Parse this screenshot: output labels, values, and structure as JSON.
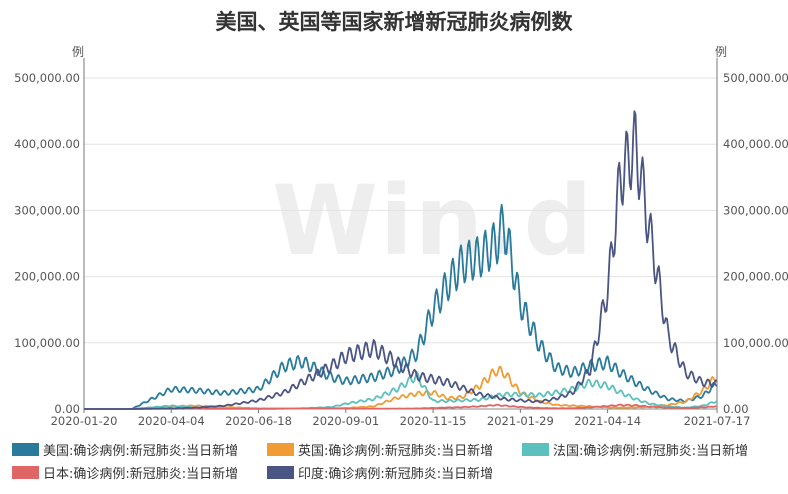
{
  "title": "美国、英国等国家新增新冠肺炎病例数",
  "watermark": "Win.d",
  "chart_data": {
    "type": "line",
    "title": "美国、英国等国家新增新冠肺炎病例数",
    "ylabel_left": "例",
    "ylabel_right": "例",
    "ylim": [
      0,
      500000
    ],
    "y_ticks": [
      "0.00",
      "100,000.00",
      "200,000.00",
      "300,000.00",
      "400,000.00",
      "500,000.00"
    ],
    "x_ticks": [
      "2020-01-20",
      "2020-04-04",
      "2020-06-18",
      "2020-09-01",
      "2020-11-15",
      "2021-01-29",
      "2021-04-14",
      "2021-07-17"
    ],
    "x_dates": [
      "2020-01-20",
      "2020-03-01",
      "2020-04-04",
      "2020-04-25",
      "2020-05-20",
      "2020-06-18",
      "2020-07-10",
      "2020-07-25",
      "2020-08-20",
      "2020-09-01",
      "2020-09-25",
      "2020-10-15",
      "2020-11-01",
      "2020-11-15",
      "2020-11-28",
      "2020-12-10",
      "2020-12-25",
      "2021-01-08",
      "2021-01-15",
      "2021-01-29",
      "2021-02-15",
      "2021-03-01",
      "2021-03-15",
      "2021-03-30",
      "2021-04-14",
      "2021-04-25",
      "2021-05-08",
      "2021-05-20",
      "2021-06-05",
      "2021-06-20",
      "2021-07-05",
      "2021-07-17"
    ],
    "series": [
      {
        "name": "美国:确诊病例:新冠肺炎:当日新增",
        "color": "#2a7a9c",
        "values": [
          0,
          0,
          30000,
          28000,
          24000,
          30000,
          65000,
          72000,
          48000,
          42000,
          48000,
          60000,
          85000,
          150000,
          190000,
          220000,
          230000,
          250000,
          280000,
          160000,
          95000,
          62000,
          55000,
          65000,
          70000,
          55000,
          40000,
          28000,
          15000,
          12000,
          20000,
          40000
        ]
      },
      {
        "name": "英国:确诊病例:新冠肺炎:当日新增",
        "color": "#f09b33",
        "values": [
          0,
          0,
          4000,
          5000,
          3000,
          1000,
          700,
          800,
          1000,
          1500,
          4000,
          17000,
          23000,
          25000,
          16000,
          18000,
          35000,
          58000,
          55000,
          25000,
          11000,
          6000,
          5000,
          4000,
          2500,
          2000,
          2500,
          3000,
          6000,
          11000,
          28000,
          50000
        ]
      },
      {
        "name": "法国:确诊病例:新冠肺炎:当日新增",
        "color": "#5bc0be",
        "values": [
          0,
          0,
          5000,
          2000,
          700,
          500,
          600,
          900,
          3000,
          8000,
          15000,
          30000,
          50000,
          12000,
          12000,
          13000,
          14000,
          20000,
          22000,
          22000,
          21000,
          25000,
          30000,
          40000,
          35000,
          25000,
          15000,
          8000,
          4000,
          2000,
          5000,
          12000
        ]
      },
      {
        "name": "日本:确诊病例:新冠肺炎:当日新增",
        "color": "#e06666",
        "values": [
          0,
          0,
          300,
          500,
          100,
          100,
          500,
          900,
          1000,
          500,
          500,
          600,
          800,
          1500,
          2200,
          2800,
          4000,
          6000,
          5000,
          3000,
          1500,
          1000,
          1200,
          2500,
          4500,
          6000,
          5500,
          3500,
          2000,
          1500,
          2500,
          4000
        ]
      },
      {
        "name": "印度:确诊病例:新冠肺炎:当日新增",
        "color": "#4a5584",
        "values": [
          0,
          0,
          1000,
          2000,
          5000,
          13000,
          25000,
          40000,
          65000,
          80000,
          92000,
          70000,
          50000,
          45000,
          40000,
          32000,
          22000,
          18000,
          15000,
          13000,
          11000,
          16000,
          25000,
          60000,
          180000,
          350000,
          400000,
          270000,
          110000,
          55000,
          40000,
          38000
        ]
      }
    ]
  }
}
